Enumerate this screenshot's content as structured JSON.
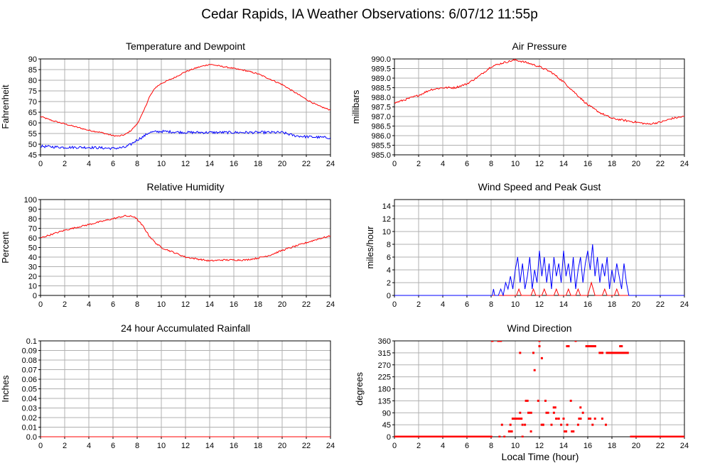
{
  "page": {
    "title": "Cedar Rapids, IA Weather Observations: 6/07/12 11:55p",
    "xlabel": "Local Time (hour)"
  },
  "colors": {
    "red": "#ff0000",
    "blue": "#0000ff",
    "grid": "#b0b0b0",
    "frame": "#000000"
  },
  "chart_data": [
    {
      "id": "temp",
      "type": "line",
      "title": "Temperature and Dewpoint",
      "ylabel": "Fahrenheit",
      "xlim": [
        0,
        24
      ],
      "ylim": [
        45,
        90
      ],
      "xticks": [
        0,
        2,
        4,
        6,
        8,
        10,
        12,
        14,
        16,
        18,
        20,
        22,
        24
      ],
      "yticks": [
        45,
        50,
        55,
        60,
        65,
        70,
        75,
        80,
        85,
        90
      ],
      "ytick_labels": [
        "45",
        "50",
        "55",
        "60",
        "65",
        "70",
        "75",
        "80",
        "85",
        "90"
      ],
      "grid": true,
      "series": [
        {
          "name": "",
          "color": "#ff0000",
          "noise": 0.3,
          "x": [
            0,
            1,
            2,
            3,
            4,
            5,
            6,
            6.5,
            7,
            7.5,
            8,
            8.5,
            9,
            9.5,
            10,
            11,
            12,
            13,
            14,
            15,
            16,
            17,
            18,
            19,
            20,
            21,
            22,
            23,
            24
          ],
          "y": [
            63,
            61,
            59.5,
            58,
            56.5,
            55.5,
            54,
            53.8,
            54.5,
            56.5,
            59.5,
            65,
            72,
            76.5,
            78.5,
            81,
            84,
            86,
            87.5,
            86.5,
            85.5,
            84.5,
            83,
            80.5,
            78,
            74.5,
            71,
            68,
            66
          ]
        },
        {
          "name": "",
          "color": "#0000ff",
          "noise": 0.6,
          "x": [
            0,
            2,
            4,
            6,
            7,
            7.5,
            8,
            8.5,
            9,
            10,
            12,
            14,
            16,
            18,
            20,
            21,
            22,
            24
          ],
          "y": [
            49,
            48.5,
            48.5,
            48,
            48.5,
            50,
            52,
            53.5,
            55.5,
            56,
            55.5,
            55.5,
            55.5,
            55.5,
            55.5,
            54,
            53.5,
            53
          ]
        }
      ]
    },
    {
      "id": "pressure",
      "type": "line",
      "title": "Air Pressure",
      "ylabel": "millibars",
      "xlim": [
        0,
        24
      ],
      "ylim": [
        985,
        990
      ],
      "xticks": [
        0,
        2,
        4,
        6,
        8,
        10,
        12,
        14,
        16,
        18,
        20,
        22,
        24
      ],
      "yticks": [
        985,
        985.5,
        986,
        986.5,
        987,
        987.5,
        988,
        988.5,
        989,
        989.5,
        990
      ],
      "ytick_labels": [
        "985.0",
        "985.5",
        "986.0",
        "986.5",
        "987.0",
        "987.5",
        "988.0",
        "988.5",
        "989.0",
        "989.5",
        "990.0"
      ],
      "grid": true,
      "series": [
        {
          "name": "",
          "color": "#ff0000",
          "noise": 0.05,
          "x": [
            0,
            1,
            2,
            3,
            4,
            5,
            6,
            7,
            8,
            9,
            10,
            11,
            12,
            13,
            14,
            15,
            16,
            17,
            18,
            19,
            20,
            21,
            22,
            23,
            24
          ],
          "y": [
            987.7,
            987.9,
            988.1,
            988.4,
            988.5,
            988.5,
            988.7,
            989.1,
            989.6,
            989.8,
            989.95,
            989.8,
            989.6,
            989.3,
            988.8,
            988.2,
            987.6,
            987.2,
            986.9,
            986.8,
            986.7,
            986.6,
            986.7,
            986.9,
            987.0
          ]
        }
      ]
    },
    {
      "id": "humidity",
      "type": "line",
      "title": "Relative Humidity",
      "ylabel": "Percent",
      "xlim": [
        0,
        24
      ],
      "ylim": [
        0,
        100
      ],
      "xticks": [
        0,
        2,
        4,
        6,
        8,
        10,
        12,
        14,
        16,
        18,
        20,
        22,
        24
      ],
      "yticks": [
        0,
        10,
        20,
        30,
        40,
        50,
        60,
        70,
        80,
        90,
        100
      ],
      "ytick_labels": [
        "0",
        "10",
        "20",
        "30",
        "40",
        "50",
        "60",
        "70",
        "80",
        "90",
        "100"
      ],
      "grid": true,
      "series": [
        {
          "name": "",
          "color": "#ff0000",
          "noise": 0.8,
          "x": [
            0,
            1,
            2,
            3,
            4,
            5,
            6,
            7,
            7.8,
            8.5,
            9,
            9.5,
            10,
            11,
            12,
            13,
            14,
            15,
            16,
            17,
            18,
            19,
            20,
            21,
            22,
            23,
            24
          ],
          "y": [
            60,
            64,
            68,
            71,
            74,
            77,
            80,
            83,
            82,
            72,
            62,
            55,
            50,
            45,
            40,
            38,
            36,
            37,
            37,
            37,
            39,
            42,
            47,
            51,
            55,
            59,
            62
          ]
        }
      ]
    },
    {
      "id": "wind",
      "type": "line",
      "title": "Wind Speed and Peak Gust",
      "ylabel": "miles/hour",
      "xlim": [
        0,
        24
      ],
      "ylim": [
        0,
        15
      ],
      "xticks": [
        0,
        2,
        4,
        6,
        8,
        10,
        12,
        14,
        16,
        18,
        20,
        22,
        24
      ],
      "yticks": [
        0,
        2,
        4,
        6,
        8,
        10,
        12,
        14
      ],
      "ytick_labels": [
        "0",
        "2",
        "4",
        "6",
        "8",
        "10",
        "12",
        "14"
      ],
      "grid": true,
      "series": [
        {
          "name": "",
          "color": "#ff0000",
          "noise": 0,
          "x": [
            0,
            10.1,
            10.3,
            10.5,
            11.3,
            11.5,
            11.7,
            12.2,
            12.4,
            12.6,
            13.2,
            13.4,
            13.6,
            14.2,
            14.4,
            14.6,
            15.0,
            15.2,
            15.4,
            16.0,
            16.3,
            16.6,
            17.2,
            17.4,
            17.6,
            18.2,
            18.4,
            18.6,
            24
          ],
          "y": [
            0,
            0,
            1,
            0,
            0,
            1,
            0,
            0,
            1,
            0,
            0,
            1,
            0,
            0,
            1,
            0,
            0,
            1,
            0,
            0,
            2,
            0,
            0,
            1,
            0,
            0,
            1,
            0,
            0
          ]
        },
        {
          "name": "",
          "color": "#0000ff",
          "noise": 0,
          "x": [
            0,
            8.1,
            8.2,
            8.3,
            8.6,
            8.8,
            9.0,
            9.2,
            9.4,
            9.6,
            9.8,
            10.0,
            10.2,
            10.4,
            10.6,
            10.8,
            11.0,
            11.2,
            11.4,
            11.6,
            11.8,
            12.0,
            12.2,
            12.4,
            12.6,
            12.8,
            13.0,
            13.2,
            13.4,
            13.6,
            13.8,
            14.0,
            14.2,
            14.4,
            14.6,
            14.8,
            15.0,
            15.2,
            15.4,
            15.6,
            15.8,
            16.0,
            16.2,
            16.4,
            16.6,
            16.8,
            17.0,
            17.2,
            17.4,
            17.6,
            17.8,
            18.0,
            18.2,
            18.4,
            18.6,
            18.8,
            19.0,
            19.2,
            19.4,
            24
          ],
          "y": [
            0,
            0,
            1,
            0,
            0,
            1,
            0,
            2,
            1,
            3,
            1,
            4,
            6,
            2,
            5,
            1,
            3,
            6,
            1,
            4,
            2,
            7,
            3,
            6,
            2,
            5,
            1,
            6,
            3,
            5,
            2,
            7,
            3,
            5,
            2,
            6,
            1,
            4,
            6,
            2,
            5,
            7,
            4,
            8,
            3,
            6,
            2,
            5,
            3,
            6,
            1,
            4,
            2,
            5,
            3,
            1,
            5,
            2,
            0,
            0
          ]
        }
      ]
    },
    {
      "id": "rain",
      "type": "line",
      "title": "24 hour Accumulated Rainfall",
      "ylabel": "Inches",
      "xlim": [
        0,
        24
      ],
      "ylim": [
        0,
        0.1
      ],
      "xticks": [
        0,
        2,
        4,
        6,
        8,
        10,
        12,
        14,
        16,
        18,
        20,
        22,
        24
      ],
      "yticks": [
        0,
        0.01,
        0.02,
        0.03,
        0.04,
        0.05,
        0.06,
        0.07,
        0.08,
        0.09,
        0.1
      ],
      "ytick_labels": [
        "0.0",
        "0.01",
        "0.02",
        "0.03",
        "0.04",
        "0.05",
        "0.06",
        "0.07",
        "0.08",
        "0.09",
        "0.1"
      ],
      "grid": true,
      "series": [
        {
          "name": "",
          "color": "#ff0000",
          "noise": 0,
          "x": [
            0,
            24
          ],
          "y": [
            0,
            0
          ]
        }
      ]
    },
    {
      "id": "direction",
      "type": "scatter",
      "title": "Wind Direction",
      "ylabel": "degrees",
      "xlim": [
        0,
        24
      ],
      "ylim": [
        0,
        360
      ],
      "xticks": [
        0,
        2,
        4,
        6,
        8,
        10,
        12,
        14,
        16,
        18,
        20,
        22,
        24
      ],
      "yticks": [
        0,
        45,
        90,
        135,
        180,
        225,
        270,
        315,
        360
      ],
      "ytick_labels": [
        "0",
        "45",
        "90",
        "135",
        "180",
        "225",
        "270",
        "315",
        "360"
      ],
      "grid": true,
      "series": [
        {
          "name": "",
          "color": "#ff0000",
          "segments": [
            [
              0,
              8.1,
              0
            ],
            [
              19.5,
              24,
              0
            ],
            [
              8.0,
              8.2,
              360
            ],
            [
              8.5,
              8.9,
              360
            ],
            [
              14.2,
              14.5,
              340
            ],
            [
              15.8,
              16.7,
              340
            ],
            [
              16.9,
              17.3,
              315
            ],
            [
              17.5,
              19.4,
              315
            ],
            [
              18.6,
              18.9,
              340
            ],
            [
              9.4,
              9.8,
              20
            ],
            [
              9.7,
              10.2,
              68
            ],
            [
              10.2,
              10.6,
              68
            ],
            [
              10.8,
              11.1,
              135
            ],
            [
              11.0,
              11.4,
              90
            ],
            [
              12.1,
              12.4,
              45
            ],
            [
              12.5,
              12.8,
              90
            ],
            [
              13.1,
              13.4,
              110
            ],
            [
              13.3,
              13.5,
              68
            ],
            [
              14.0,
              14.3,
              20
            ],
            [
              14.6,
              14.9,
              20
            ],
            [
              15.2,
              15.5,
              68
            ],
            [
              16.0,
              16.3,
              68
            ]
          ],
          "x": [
            8.7,
            8.9,
            9.1,
            9.6,
            10.4,
            10.6,
            10.8,
            11.3,
            11.6,
            11.9,
            12.0,
            12.2,
            12.3,
            12.5,
            13.0,
            13.2,
            13.6,
            13.8,
            14.0,
            14.3,
            14.6,
            15.0,
            15.2,
            15.4,
            15.6,
            16.4,
            16.6,
            17.2,
            17.5,
            10.4,
            11.5,
            12.0,
            10.6
          ],
          "y": [
            0,
            45,
            0,
            45,
            315,
            45,
            45,
            20,
            250,
            135,
            360,
            295,
            45,
            135,
            45,
            90,
            68,
            45,
            68,
            45,
            135,
            360,
            45,
            110,
            90,
            45,
            68,
            68,
            45,
            90,
            315,
            340,
            0
          ]
        }
      ]
    }
  ]
}
